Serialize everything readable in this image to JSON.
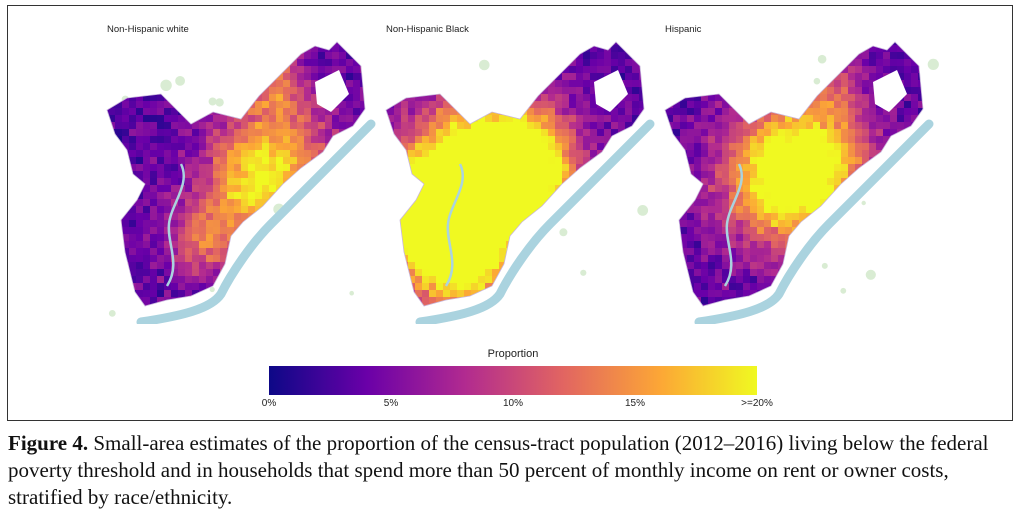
{
  "panels": [
    {
      "id": "nh-white",
      "title": "Non-Hispanic white",
      "hotspots": [
        [
          0.54,
          0.55,
          0.18,
          0.6
        ],
        [
          0.36,
          0.72,
          0.12,
          0.45
        ],
        [
          0.63,
          0.42,
          0.2,
          0.45
        ],
        [
          0.62,
          0.2,
          0.12,
          0.35
        ]
      ]
    },
    {
      "id": "nh-black",
      "title": "Non-Hispanic Black",
      "hotspots": [
        [
          0.38,
          0.48,
          0.25,
          1.0
        ],
        [
          0.2,
          0.6,
          0.18,
          0.95
        ],
        [
          0.27,
          0.78,
          0.2,
          0.9
        ],
        [
          0.52,
          0.5,
          0.18,
          0.7
        ]
      ]
    },
    {
      "id": "hispanic",
      "title": "Hispanic",
      "hotspots": [
        [
          0.44,
          0.52,
          0.22,
          0.85
        ],
        [
          0.55,
          0.45,
          0.2,
          0.55
        ],
        [
          0.62,
          0.2,
          0.1,
          0.3
        ]
      ]
    }
  ],
  "legend": {
    "title": "Proportion",
    "ticks": [
      "0%",
      "5%",
      "10%",
      "15%",
      ">=20%"
    ],
    "colors": [
      "#0d0887",
      "#6a00a8",
      "#b12a90",
      "#e16462",
      "#fca636",
      "#f0f921"
    ]
  },
  "caption": {
    "label": "Figure 4.",
    "text": " Small-area estimates of the proportion of the census-tract population (2012–2016) living below the federal poverty threshold and in households that spend more than 50 percent of monthly income on rent or owner costs, stratified by race/ethnicity."
  }
}
